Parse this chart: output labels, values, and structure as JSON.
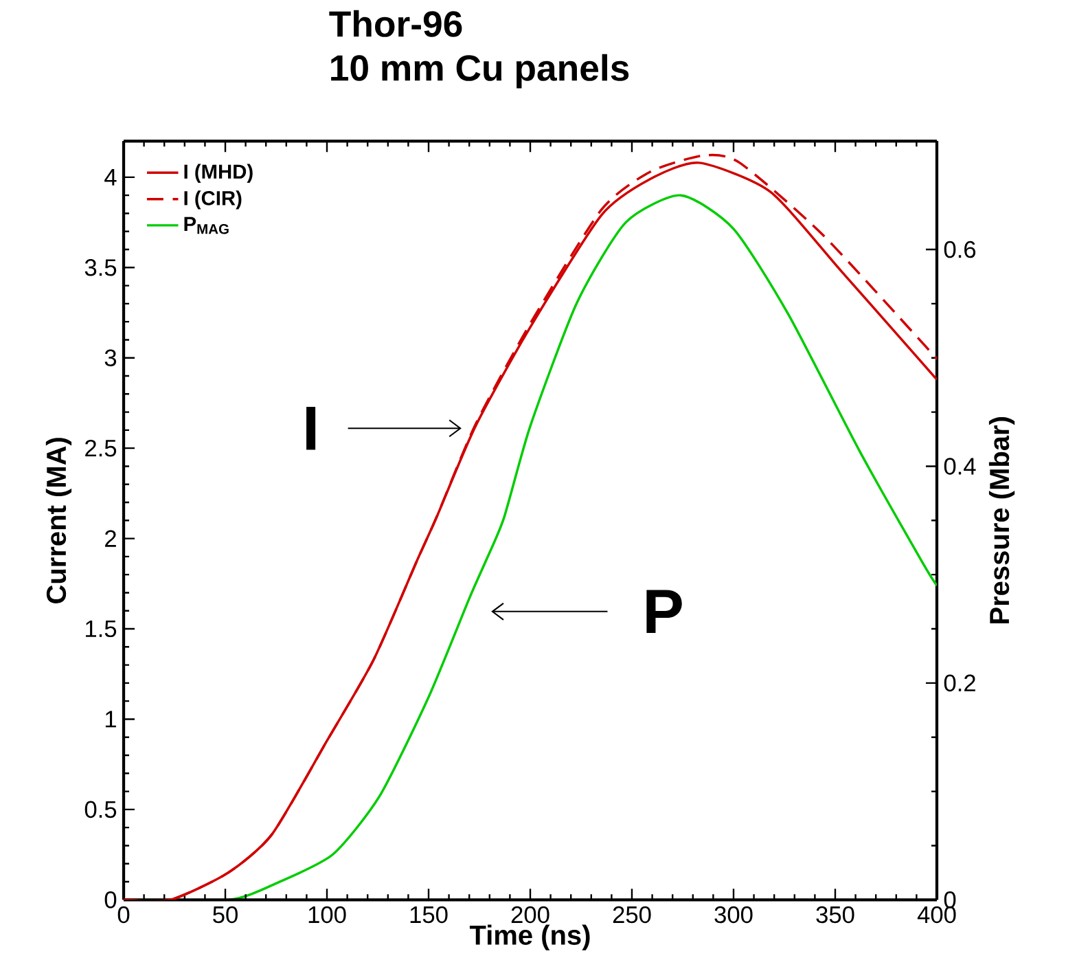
{
  "chart_data": {
    "type": "line",
    "title": "Thor-96",
    "subtitle": "10 mm Cu panels",
    "xlabel": "Time (ns)",
    "ylabel": "Current (MA)",
    "y2label": "Pressure (Mbar)",
    "xlim": [
      0,
      400
    ],
    "xticks": [
      0,
      50,
      100,
      150,
      200,
      250,
      300,
      350,
      400
    ],
    "ylim": [
      0,
      4.2
    ],
    "yticks": [
      0,
      0.5,
      1,
      1.5,
      2,
      2.5,
      3,
      3.5,
      4
    ],
    "y2lim": [
      0,
      0.7
    ],
    "y2ticks": [
      0,
      0.2,
      0.4,
      0.6
    ],
    "legend": "top left",
    "grid": false,
    "series": [
      {
        "name": "I (MHD)",
        "color": "#d00000",
        "line_style": "solid",
        "x": [
          0,
          23,
          51,
          73,
          100,
          123,
          144,
          154,
          173,
          200,
          235,
          259,
          283,
          318,
          353,
          400
        ],
        "values": [
          0,
          0,
          0.147,
          0.363,
          0.88,
          1.33,
          1.87,
          2.12,
          2.62,
          3.17,
          3.79,
          3.99,
          4.08,
          3.92,
          3.48,
          2.88
        ]
      },
      {
        "name": "I (CIR)",
        "color": "#d00000",
        "line_style": "dashed",
        "x": [
          0,
          23,
          51,
          73,
          100,
          123,
          144,
          154,
          173,
          200,
          235,
          259,
          285,
          303,
          344,
          398,
          400
        ],
        "values": [
          0,
          0,
          0.147,
          0.363,
          0.88,
          1.33,
          1.87,
          2.12,
          2.63,
          3.19,
          3.82,
          4.03,
          4.12,
          4.08,
          3.68,
          3.02,
          3.0
        ]
      },
      {
        "name": "P$_{MAG}$",
        "color": "#00cc00",
        "line_style": "solid",
        "axis": "y2",
        "x": [
          0,
          52,
          76,
          103,
          126,
          150,
          170,
          178,
          187,
          200,
          223,
          247,
          274,
          300,
          327,
          362,
          393,
          400
        ],
        "values": [
          0,
          0,
          0.016,
          0.042,
          0.096,
          0.187,
          0.278,
          0.312,
          0.352,
          0.437,
          0.551,
          0.625,
          0.65,
          0.619,
          0.54,
          0.414,
          0.311,
          0.29
        ]
      }
    ],
    "annotations": [
      {
        "text": "I",
        "x": 168,
        "y": 2.61
      },
      "P"
    ]
  }
}
